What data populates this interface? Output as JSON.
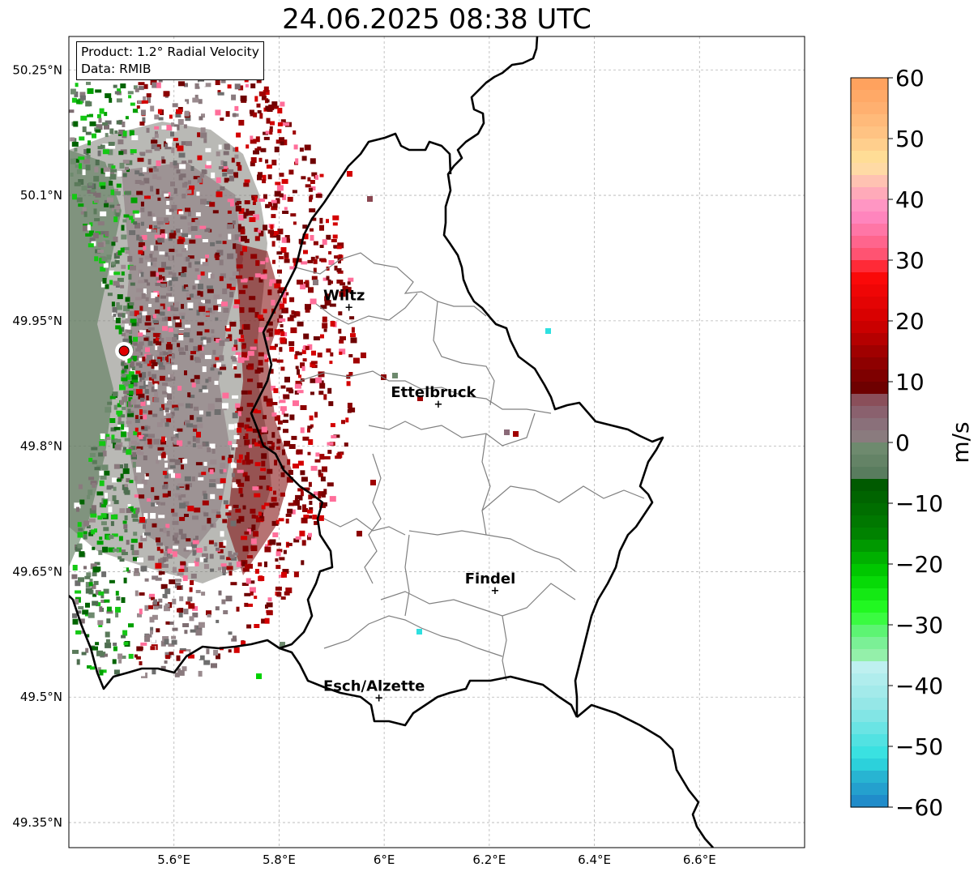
{
  "title": "24.06.2025 08:38 UTC",
  "info": {
    "product": "Product: 1.2° Radial Velocity",
    "data": "Data: RMIB"
  },
  "map": {
    "lon_range": [
      5.4,
      6.8
    ],
    "lat_range": [
      49.32,
      50.29
    ],
    "lon_ticks": [
      {
        "value": 5.6,
        "label": "5.6°E"
      },
      {
        "value": 5.8,
        "label": "5.8°E"
      },
      {
        "value": 6.0,
        "label": "6°E"
      },
      {
        "value": 6.2,
        "label": "6.2°E"
      },
      {
        "value": 6.4,
        "label": "6.4°E"
      },
      {
        "value": 6.6,
        "label": "6.6°E"
      }
    ],
    "lat_ticks": [
      {
        "value": 50.25,
        "label": "50.25°N"
      },
      {
        "value": 50.1,
        "label": "50.1°N"
      },
      {
        "value": 49.95,
        "label": "49.95°N"
      },
      {
        "value": 49.8,
        "label": "49.8°N"
      },
      {
        "value": 49.65,
        "label": "49.65°N"
      },
      {
        "value": 49.5,
        "label": "49.5°N"
      },
      {
        "value": 49.35,
        "label": "49.35°N"
      }
    ],
    "grid": true,
    "radar_site": {
      "lon": 5.505,
      "lat": 49.914
    },
    "cities": [
      {
        "name": "Wiltz",
        "lon": 5.933,
        "lat": 49.966
      },
      {
        "name": "Ettelbruck",
        "lon": 6.103,
        "lat": 49.85
      },
      {
        "name": "Findel",
        "lon": 6.211,
        "lat": 49.627
      },
      {
        "name": "Esch/Alzette",
        "lon": 5.99,
        "lat": 49.499
      }
    ]
  },
  "colorbar": {
    "label": "m/s",
    "vmin": -60,
    "vmax": 60,
    "ticks": [
      {
        "value": 60,
        "label": "60"
      },
      {
        "value": 50,
        "label": "50"
      },
      {
        "value": 40,
        "label": "40"
      },
      {
        "value": 30,
        "label": "30"
      },
      {
        "value": 20,
        "label": "20"
      },
      {
        "value": 10,
        "label": "10"
      },
      {
        "value": 0,
        "label": "0"
      },
      {
        "value": -10,
        "label": "−10"
      },
      {
        "value": -20,
        "label": "−20"
      },
      {
        "value": -30,
        "label": "−30"
      },
      {
        "value": -40,
        "label": "−40"
      },
      {
        "value": -50,
        "label": "−50"
      },
      {
        "value": -60,
        "label": "−60"
      }
    ],
    "stops": [
      {
        "v": 60,
        "c": "#ff9f5a"
      },
      {
        "v": 55,
        "c": "#ffb070"
      },
      {
        "v": 50,
        "c": "#ffc888"
      },
      {
        "v": 46,
        "c": "#ffe49a"
      },
      {
        "v": 44,
        "c": "#ffd0b0"
      },
      {
        "v": 42,
        "c": "#ffb4b4"
      },
      {
        "v": 38,
        "c": "#ff8cc8"
      },
      {
        "v": 34,
        "c": "#ff6e9a"
      },
      {
        "v": 30,
        "c": "#ff4a64"
      },
      {
        "v": 28,
        "c": "#ff0a0a"
      },
      {
        "v": 20,
        "c": "#d40000"
      },
      {
        "v": 14,
        "c": "#960000"
      },
      {
        "v": 9,
        "c": "#6e0000"
      },
      {
        "v": 8,
        "c": "#8a4650"
      },
      {
        "v": 4,
        "c": "#8a6a78"
      },
      {
        "v": 0,
        "c": "#8a8080"
      },
      {
        "v": -1,
        "c": "#6e8a6e"
      },
      {
        "v": -6,
        "c": "#54785a"
      },
      {
        "v": -7,
        "c": "#005a00"
      },
      {
        "v": -15,
        "c": "#008200"
      },
      {
        "v": -22,
        "c": "#00d200"
      },
      {
        "v": -28,
        "c": "#28ff28"
      },
      {
        "v": -32,
        "c": "#6ef08c"
      },
      {
        "v": -36,
        "c": "#a0f0b4"
      },
      {
        "v": -37,
        "c": "#bef0f0"
      },
      {
        "v": -44,
        "c": "#8ee6e6"
      },
      {
        "v": -52,
        "c": "#2ee0e0"
      },
      {
        "v": -55,
        "c": "#28b4d2"
      },
      {
        "v": -60,
        "c": "#1e82c8"
      }
    ]
  },
  "colors": {
    "border": "#000000",
    "communes": "#808080",
    "grid": "#b4b4b4",
    "radar_site": "#e00000",
    "city_marker": "#000000"
  }
}
